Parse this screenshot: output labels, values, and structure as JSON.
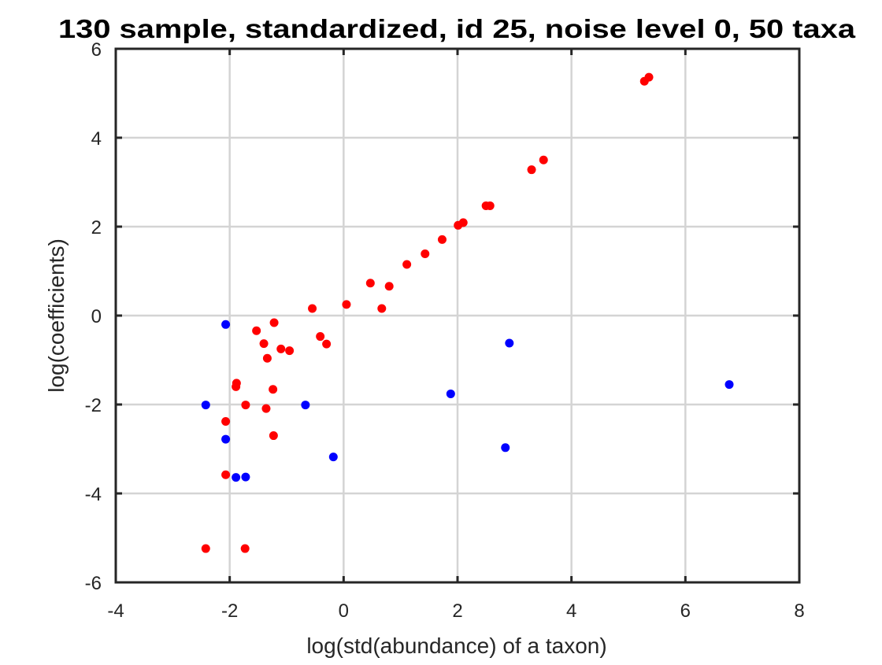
{
  "chart_data": {
    "type": "scatter",
    "title": "130 sample, standardized, id 25, noise level 0, 50 taxa",
    "xlabel": "log(std(abundance) of a taxon)",
    "ylabel": "log(coefficients)",
    "xlim": [
      -4,
      8
    ],
    "ylim": [
      -6,
      6
    ],
    "xticks": [
      -4,
      -2,
      0,
      2,
      4,
      6,
      8
    ],
    "yticks": [
      -6,
      -4,
      -2,
      0,
      2,
      4,
      6
    ],
    "xtick_labels": [
      "-4",
      "-2",
      "0",
      "2",
      "4",
      "6",
      "8"
    ],
    "ytick_labels": [
      "-6",
      "-4",
      "-2",
      "0",
      "2",
      "4",
      "6"
    ],
    "grid": true,
    "legend": "none",
    "series": [
      {
        "color": "#ff0000",
        "points": [
          [
            5.36,
            5.36
          ],
          [
            5.28,
            5.27
          ],
          [
            3.51,
            3.5
          ],
          [
            3.3,
            3.28
          ],
          [
            2.57,
            2.47
          ],
          [
            2.5,
            2.47
          ],
          [
            2.1,
            2.09
          ],
          [
            2.01,
            2.03
          ],
          [
            1.73,
            1.71
          ],
          [
            1.43,
            1.39
          ],
          [
            1.11,
            1.15
          ],
          [
            0.8,
            0.66
          ],
          [
            0.47,
            0.73
          ],
          [
            0.67,
            0.16
          ],
          [
            0.05,
            0.25
          ],
          [
            -0.55,
            0.16
          ],
          [
            -1.22,
            -0.16
          ],
          [
            -1.53,
            -0.34
          ],
          [
            -1.1,
            -0.75
          ],
          [
            -1.4,
            -0.63
          ],
          [
            -0.41,
            -0.47
          ],
          [
            -0.3,
            -0.64
          ],
          [
            -0.95,
            -0.79
          ],
          [
            -1.34,
            -0.96
          ],
          [
            -1.88,
            -1.52
          ],
          [
            -1.89,
            -1.6
          ],
          [
            -1.24,
            -1.66
          ],
          [
            -1.72,
            -2.01
          ],
          [
            -1.36,
            -2.09
          ],
          [
            -2.07,
            -2.38
          ],
          [
            -1.23,
            -2.7
          ],
          [
            -2.07,
            -3.58
          ],
          [
            -2.42,
            -5.24
          ],
          [
            -1.73,
            -5.24
          ]
        ]
      },
      {
        "color": "#0000ff",
        "points": [
          [
            -2.07,
            -0.2
          ],
          [
            2.91,
            -0.62
          ],
          [
            6.77,
            -1.55
          ],
          [
            1.88,
            -1.76
          ],
          [
            -2.42,
            -2.01
          ],
          [
            -0.67,
            -2.01
          ],
          [
            -2.07,
            -2.78
          ],
          [
            2.84,
            -2.97
          ],
          [
            -0.18,
            -3.18
          ],
          [
            -1.89,
            -3.64
          ],
          [
            -1.72,
            -3.63
          ]
        ]
      }
    ]
  }
}
